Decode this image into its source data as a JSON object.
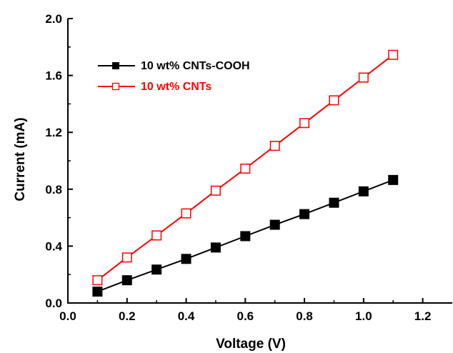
{
  "chart_data": {
    "type": "line",
    "xlabel": "Voltage (V)",
    "ylabel": "Current (mA)",
    "xlim": [
      0.0,
      1.3
    ],
    "ylim": [
      0.0,
      2.0
    ],
    "xticks": [
      0.0,
      0.2,
      0.4,
      0.6,
      0.8,
      1.0,
      1.2
    ],
    "xtick_labels": [
      "0.0",
      "0.2",
      "0.4",
      "0.6",
      "0.8",
      "1.0",
      "1.2"
    ],
    "yticks": [
      0.0,
      0.4,
      0.8,
      1.2,
      1.6,
      2.0
    ],
    "ytick_labels": [
      "0.0",
      "0.4",
      "0.8",
      "1.2",
      "1.6",
      "2.0"
    ],
    "grid": false,
    "legend_position": "top-left",
    "x": [
      0.1,
      0.2,
      0.3,
      0.4,
      0.5,
      0.6,
      0.7,
      0.8,
      0.9,
      1.0,
      1.1
    ],
    "series": [
      {
        "name": "10 wt% CNTs-COOH",
        "color": "#000000",
        "marker": "filled-square",
        "values": [
          0.08,
          0.16,
          0.235,
          0.31,
          0.39,
          0.47,
          0.55,
          0.625,
          0.705,
          0.785,
          0.865
        ]
      },
      {
        "name": "10 wt% CNTs",
        "color": "#ff0000",
        "marker": "open-square",
        "values": [
          0.16,
          0.32,
          0.475,
          0.63,
          0.79,
          0.945,
          1.105,
          1.265,
          1.425,
          1.585,
          1.745
        ]
      }
    ]
  }
}
